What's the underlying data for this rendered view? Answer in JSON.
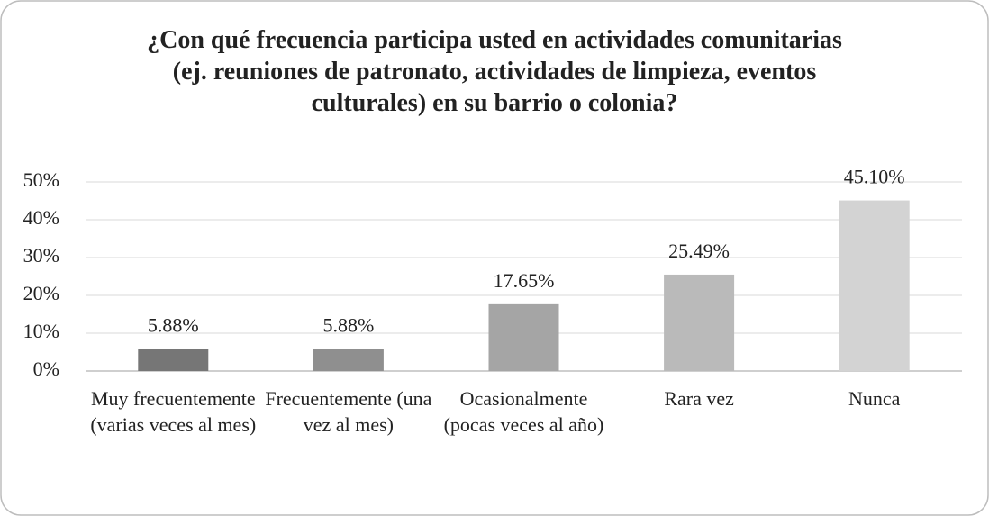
{
  "chart_data": {
    "type": "bar",
    "title": "¿Con qué frecuencia participa usted en actividades comunitarias (ej. reuniones de patronato, actividades de limpieza, eventos culturales) en su barrio o colonia?",
    "categories": [
      "Muy frecuentemente (varias veces al mes)",
      "Frecuentemente (una vez al mes)",
      "Ocasionalmente (pocas veces al año)",
      "Rara vez",
      "Nunca"
    ],
    "values": [
      5.88,
      5.88,
      17.65,
      25.49,
      45.1
    ],
    "value_labels": [
      "5.88%",
      "5.88%",
      "17.65%",
      "25.49%",
      "45.10%"
    ],
    "colors": [
      "#767676",
      "#8f8f8f",
      "#a5a5a5",
      "#bababa",
      "#d3d3d3"
    ],
    "ylim": [
      0,
      50
    ],
    "yticks": [
      {
        "value": 0,
        "label": "0%"
      },
      {
        "value": 10,
        "label": "10%"
      },
      {
        "value": 20,
        "label": "20%"
      },
      {
        "value": 30,
        "label": "30%"
      },
      {
        "value": 40,
        "label": "40%"
      },
      {
        "value": 50,
        "label": "50%"
      }
    ],
    "grid": true
  }
}
